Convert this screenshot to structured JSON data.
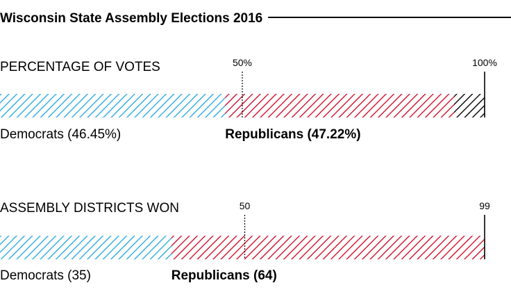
{
  "title": "Wisconsin State Assembly Elections 2016",
  "colors": {
    "democrats": "#3ab0e6",
    "republicans": "#d4203a",
    "other": "#111111",
    "background": "#ffffff"
  },
  "chart_data": [
    {
      "type": "bar",
      "orientation": "horizontal-stacked",
      "section_title": "PERCENTAGE OF VOTES",
      "xlim": [
        0,
        100
      ],
      "ticks": [
        {
          "value": 50,
          "label": "50%"
        },
        {
          "value": 100,
          "label": "100%"
        }
      ],
      "series": [
        {
          "name": "Democrats",
          "value": 46.45,
          "label": "Democrats (46.45%)",
          "color_key": "democrats",
          "bold": false
        },
        {
          "name": "Republicans",
          "value": 47.22,
          "label": "Republicans (47.22%)",
          "color_key": "republicans",
          "bold": true
        },
        {
          "name": "",
          "value": 6.33,
          "label": "",
          "color_key": "other",
          "bold": false
        }
      ]
    },
    {
      "type": "bar",
      "orientation": "horizontal-stacked",
      "section_title": "ASSEMBLY DISTRICTS WON",
      "xlim": [
        0,
        99
      ],
      "ticks": [
        {
          "value": 50,
          "label": "50"
        },
        {
          "value": 99,
          "label": "99"
        }
      ],
      "series": [
        {
          "name": "Democrats",
          "value": 35,
          "label": "Democrats (35)",
          "color_key": "democrats",
          "bold": false
        },
        {
          "name": "Republicans",
          "value": 64,
          "label": "Republicans (64)",
          "color_key": "republicans",
          "bold": true
        }
      ]
    }
  ]
}
